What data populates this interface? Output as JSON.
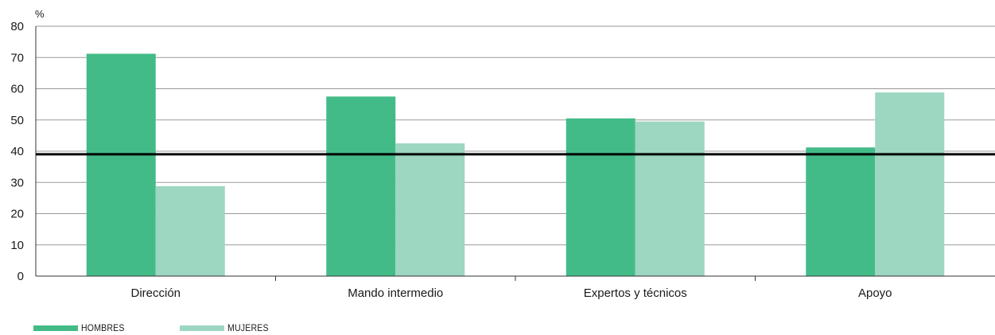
{
  "chart_data": {
    "type": "bar",
    "unit_label": "%",
    "categories": [
      "Dirección",
      "Mando intermedio",
      "Expertos y técnicos",
      "Apoyo"
    ],
    "series": [
      {
        "name": "HOMBRES",
        "values": [
          71.2,
          57.5,
          50.5,
          41.2
        ],
        "color": "#43bb88"
      },
      {
        "name": "MUJERES",
        "values": [
          28.8,
          42.5,
          49.5,
          58.8
        ],
        "color": "#9dd6c1"
      }
    ],
    "ylim": [
      0,
      80
    ],
    "yticks": [
      0,
      10,
      20,
      30,
      40,
      50,
      60,
      70,
      80
    ],
    "reference_line": {
      "value": 39,
      "color": "#000000"
    },
    "grid": true,
    "legend_position": "bottom-left"
  }
}
